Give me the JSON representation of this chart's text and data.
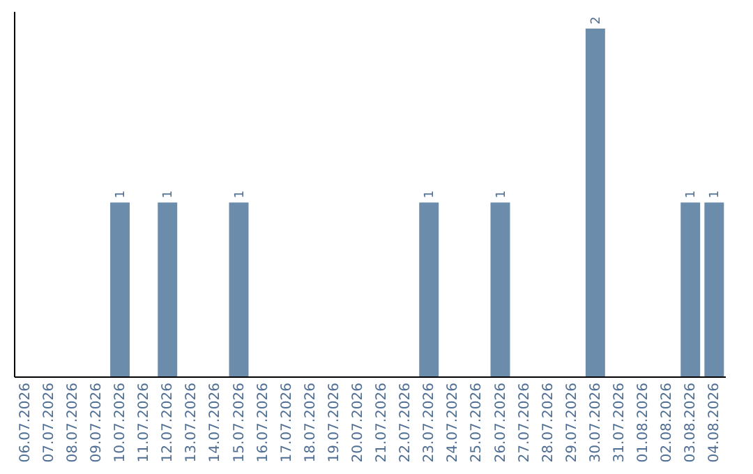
{
  "chart_data": {
    "type": "bar",
    "categories": [
      "06.07.2026",
      "07.07.2026",
      "08.07.2026",
      "09.07.2026",
      "10.07.2026",
      "11.07.2026",
      "12.07.2026",
      "13.07.2026",
      "14.07.2026",
      "15.07.2026",
      "16.07.2026",
      "17.07.2026",
      "18.07.2026",
      "19.07.2026",
      "20.07.2026",
      "21.07.2026",
      "22.07.2026",
      "23.07.2026",
      "24.07.2026",
      "25.07.2026",
      "26.07.2026",
      "27.07.2026",
      "28.07.2026",
      "29.07.2026",
      "30.07.2026",
      "31.07.2026",
      "01.08.2026",
      "02.08.2026",
      "03.08.2026",
      "04.08.2026"
    ],
    "values": [
      0,
      0,
      0,
      0,
      1,
      0,
      1,
      0,
      0,
      1,
      0,
      0,
      0,
      0,
      0,
      0,
      0,
      1,
      0,
      0,
      1,
      0,
      0,
      0,
      2,
      0,
      0,
      0,
      1,
      1
    ],
    "value_labels": [
      null,
      null,
      null,
      null,
      "1",
      null,
      "1",
      null,
      null,
      "1",
      null,
      null,
      null,
      null,
      null,
      null,
      null,
      "1",
      null,
      null,
      "1",
      null,
      null,
      null,
      "2",
      null,
      null,
      null,
      "1",
      "1"
    ],
    "color": "#6b8cab",
    "ylim": [
      0,
      2.1
    ],
    "tick_labels": "x",
    "grid": false
  }
}
